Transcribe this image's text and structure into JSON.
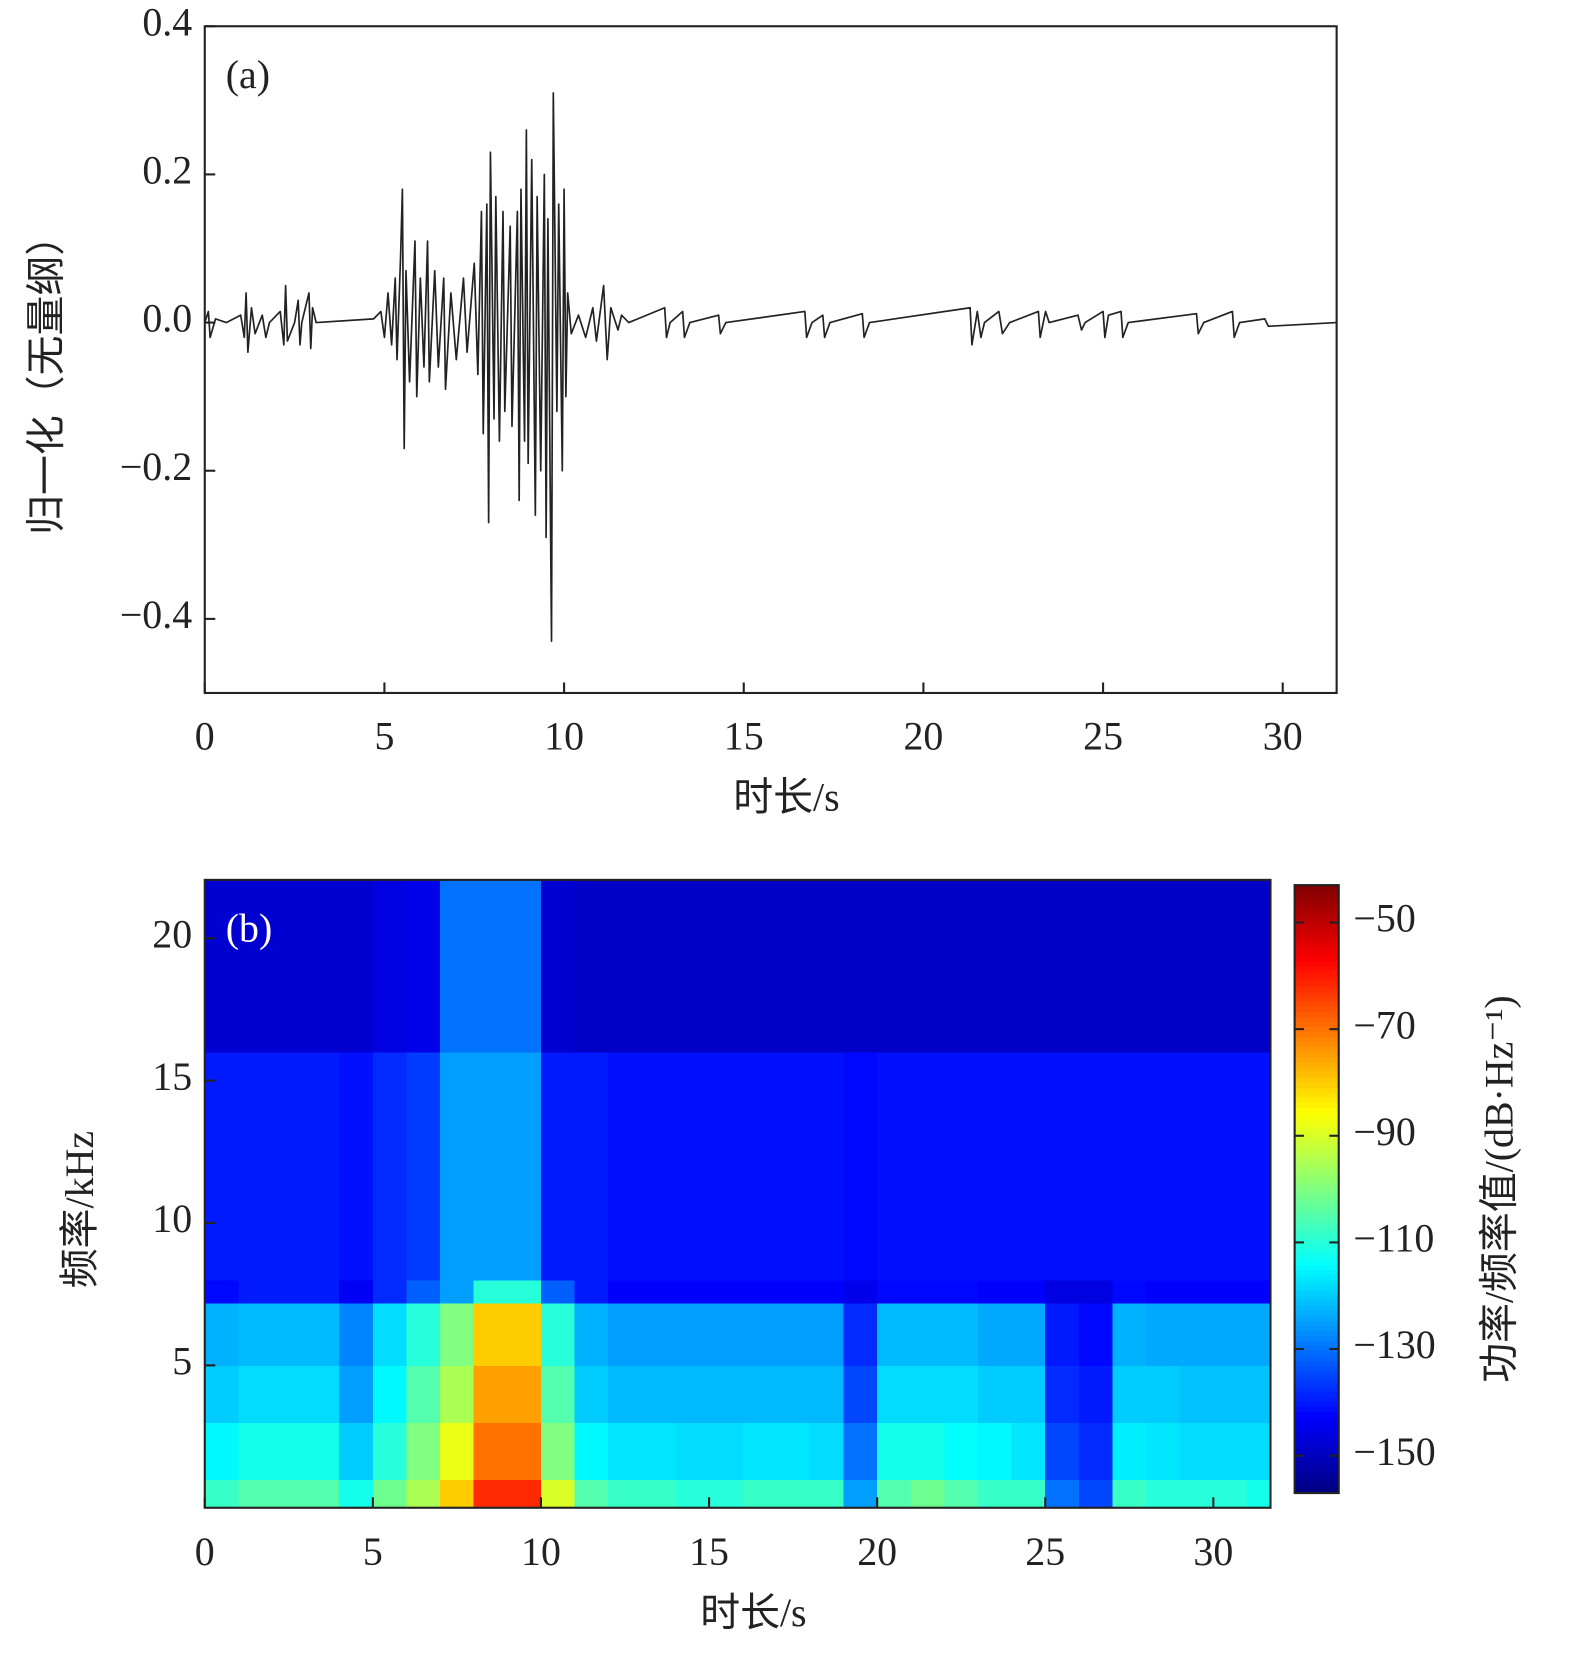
{
  "chart_data": [
    {
      "type": "line",
      "panel_label": "(a)",
      "x_label": "时长/s",
      "y_label": "归一化（无量纲）",
      "color": "#222222",
      "xlim": [
        0,
        31.5
      ],
      "ylim": [
        -0.5,
        0.4
      ],
      "xticks": [
        0,
        5,
        10,
        15,
        20,
        25,
        30
      ],
      "yticks": [
        {
          "value": -0.4,
          "label": "−0.4"
        },
        {
          "value": -0.2,
          "label": "−0.2"
        },
        {
          "value": 0,
          "label": "0.0"
        },
        0.2,
        0.4
      ],
      "x": [
        0,
        0.1,
        0.15,
        0.3,
        0.6,
        1.0,
        1.1,
        1.15,
        1.2,
        1.3,
        1.4,
        1.6,
        1.7,
        1.8,
        2.1,
        2.2,
        2.25,
        2.3,
        2.5,
        2.6,
        2.65,
        2.7,
        2.9,
        2.95,
        3.0,
        3.1,
        4.7,
        4.9,
        5.0,
        5.1,
        5.2,
        5.3,
        5.35,
        5.45,
        5.5,
        5.55,
        5.6,
        5.7,
        5.85,
        5.9,
        6.0,
        6.1,
        6.2,
        6.25,
        6.4,
        6.5,
        6.65,
        6.7,
        6.85,
        7.0,
        7.2,
        7.3,
        7.5,
        7.6,
        7.7,
        7.75,
        7.85,
        7.9,
        7.95,
        8.05,
        8.1,
        8.2,
        8.3,
        8.35,
        8.5,
        8.55,
        8.7,
        8.75,
        8.8,
        8.9,
        8.95,
        9.0,
        9.1,
        9.2,
        9.25,
        9.35,
        9.45,
        9.5,
        9.55,
        9.65,
        9.7,
        9.8,
        9.85,
        9.95,
        10.0,
        10.05,
        10.1,
        10.2,
        10.4,
        10.6,
        10.8,
        10.9,
        11.1,
        11.2,
        11.3,
        11.5,
        11.6,
        11.8,
        12.8,
        12.85,
        12.95,
        13.3,
        13.35,
        13.5,
        14.3,
        14.35,
        14.5,
        16.7,
        16.75,
        16.9,
        17.2,
        17.25,
        17.4,
        18.3,
        18.35,
        18.5,
        21.3,
        21.35,
        21.5,
        21.6,
        21.7,
        22.1,
        22.2,
        22.4,
        23.2,
        23.25,
        23.4,
        23.5,
        24.3,
        24.4,
        24.5,
        25.0,
        25.05,
        25.15,
        25.5,
        25.55,
        25.7,
        27.6,
        27.65,
        27.8,
        28.6,
        28.65,
        28.8,
        29.5,
        29.6,
        31.5
      ],
      "values": [
        0,
        0.015,
        -0.02,
        0.005,
        0,
        0.01,
        -0.02,
        0.04,
        -0.04,
        0.02,
        -0.015,
        0.01,
        -0.02,
        0,
        0.015,
        -0.03,
        0.05,
        -0.025,
        0,
        0.03,
        -0.03,
        0,
        0.04,
        -0.035,
        0.02,
        0,
        0.005,
        0.015,
        -0.02,
        0.04,
        -0.03,
        0.06,
        -0.05,
        0.09,
        0.18,
        -0.17,
        0.07,
        -0.08,
        0.11,
        -0.1,
        0.06,
        -0.06,
        0.11,
        -0.08,
        0.07,
        -0.06,
        0.06,
        -0.09,
        0.04,
        -0.05,
        0.06,
        -0.04,
        0.08,
        -0.07,
        0.15,
        -0.15,
        0.16,
        -0.27,
        0.23,
        -0.13,
        0.17,
        -0.16,
        0.15,
        -0.12,
        0.13,
        -0.14,
        0.15,
        -0.24,
        0.18,
        -0.16,
        0.26,
        -0.19,
        0.22,
        -0.26,
        0.17,
        -0.2,
        0.2,
        -0.29,
        0.14,
        -0.43,
        0.31,
        -0.12,
        0.16,
        -0.2,
        0.18,
        -0.1,
        0.04,
        -0.015,
        0.01,
        -0.02,
        0.02,
        -0.025,
        0.05,
        -0.05,
        0.02,
        -0.01,
        0.01,
        0,
        0.02,
        -0.02,
        0,
        0.015,
        -0.02,
        0,
        0.01,
        -0.015,
        0,
        0.015,
        -0.02,
        0,
        0.01,
        -0.02,
        0,
        0.012,
        -0.02,
        0,
        0.02,
        -0.03,
        0.015,
        -0.02,
        0,
        0.015,
        -0.015,
        0,
        0.015,
        -0.02,
        0.015,
        0,
        0.01,
        -0.01,
        0,
        0.015,
        -0.02,
        0.01,
        0.015,
        -0.02,
        0,
        0.012,
        -0.015,
        0,
        0.015,
        -0.02,
        0,
        0.005,
        -0.005,
        0
      ]
    },
    {
      "type": "heatmap",
      "panel_label": "(b)",
      "x_label": "时长/s",
      "y_label": "频率/kHz",
      "colorbar_label": "功率/频率值/(dB·Hz⁻¹)",
      "colormap": "jet",
      "xlim": [
        0,
        31.7
      ],
      "ylim": [
        0,
        22.05
      ],
      "clim": [
        -157,
        -43
      ],
      "xticks": [
        0,
        5,
        10,
        15,
        20,
        25,
        30
      ],
      "yticks": [
        5,
        10,
        15,
        20
      ],
      "cticks": [
        {
          "value": -50,
          "label": "−50"
        },
        {
          "value": -70,
          "label": "−70"
        },
        {
          "value": -90,
          "label": "−90"
        },
        {
          "value": -110,
          "label": "−110"
        },
        {
          "value": -130,
          "label": "−130"
        },
        {
          "value": -150,
          "label": "−150"
        }
      ],
      "x_edges": [
        0,
        1,
        2,
        3,
        4,
        5,
        6,
        7,
        8,
        9,
        10,
        11,
        12,
        13,
        14,
        15,
        16,
        17,
        18,
        19,
        20,
        21,
        22,
        23,
        24,
        25,
        26,
        27,
        28,
        29,
        30,
        31,
        31.7
      ],
      "y_edges": [
        0,
        1,
        3,
        5,
        7.2,
        8,
        16,
        22.05
      ],
      "values": [
        [
          -108,
          -105,
          -105,
          -105,
          -112,
          -102,
          -95,
          -80,
          -62,
          -62,
          -90,
          -105,
          -108,
          -108,
          -110,
          -110,
          -108,
          -108,
          -108,
          -125,
          -105,
          -102,
          -105,
          -108,
          -108,
          -130,
          -135,
          -108,
          -110,
          -110,
          -110,
          -112
        ],
        [
          -115,
          -112,
          -112,
          -112,
          -120,
          -110,
          -100,
          -88,
          -70,
          -70,
          -100,
          -115,
          -117,
          -117,
          -118,
          -118,
          -117,
          -117,
          -118,
          -130,
          -112,
          -112,
          -114,
          -115,
          -117,
          -135,
          -138,
          -116,
          -117,
          -118,
          -118,
          -118
        ],
        [
          -120,
          -118,
          -118,
          -118,
          -125,
          -115,
          -105,
          -95,
          -75,
          -75,
          -105,
          -120,
          -122,
          -122,
          -122,
          -122,
          -122,
          -122,
          -122,
          -135,
          -118,
          -118,
          -118,
          -120,
          -120,
          -138,
          -140,
          -120,
          -120,
          -121,
          -121,
          -121
        ],
        [
          -123,
          -122,
          -122,
          -122,
          -128,
          -118,
          -110,
          -100,
          -80,
          -80,
          -110,
          -123,
          -125,
          -125,
          -125,
          -125,
          -125,
          -125,
          -125,
          -138,
          -122,
          -122,
          -122,
          -124,
          -124,
          -140,
          -142,
          -123,
          -124,
          -124,
          -124,
          -124
        ],
        [
          -142,
          -140,
          -140,
          -140,
          -144,
          -138,
          -132,
          -125,
          -110,
          -110,
          -132,
          -140,
          -143,
          -143,
          -143,
          -143,
          -143,
          -143,
          -143,
          -145,
          -142,
          -142,
          -142,
          -143,
          -143,
          -146,
          -146,
          -142,
          -143,
          -143,
          -143,
          -143
        ],
        [
          -140,
          -140,
          -140,
          -140,
          -141,
          -138,
          -136,
          -125,
          -125,
          -125,
          -140,
          -140,
          -141,
          -141,
          -141,
          -141,
          -141,
          -141,
          -141,
          -142,
          -141,
          -141,
          -141,
          -141,
          -141,
          -141,
          -141,
          -141,
          -141,
          -141,
          -141,
          -141
        ],
        [
          -148,
          -148,
          -148,
          -148,
          -148,
          -146,
          -145,
          -130,
          -130,
          -130,
          -148,
          -149,
          -149,
          -149,
          -149,
          -149,
          -149,
          -149,
          -149,
          -149,
          -149,
          -149,
          -149,
          -149,
          -149,
          -149,
          -149,
          -149,
          -149,
          -149,
          -149,
          -149
        ]
      ]
    }
  ]
}
